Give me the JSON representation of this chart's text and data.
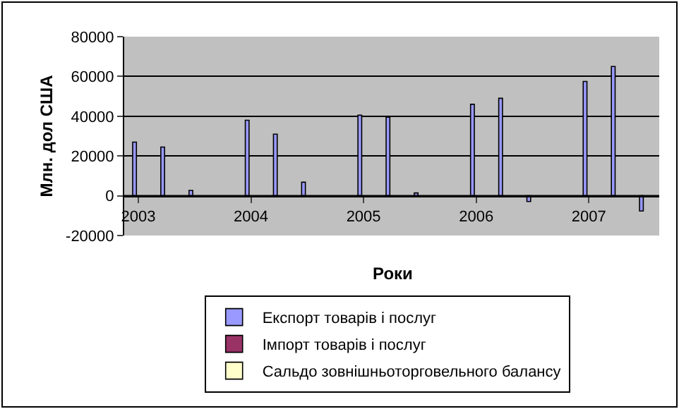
{
  "chart_data": {
    "type": "bar",
    "xlabel": "Роки",
    "ylabel": "Млн. дол США",
    "categories": [
      "2003",
      null,
      null,
      null,
      "2004",
      null,
      null,
      null,
      "2005",
      null,
      null,
      null,
      "2006",
      null,
      null,
      null,
      "2007",
      null,
      null
    ],
    "series": [
      {
        "name": "Експорт товарів і послуг",
        "color": "#9999ff",
        "values": [
          27000,
          24500,
          2700,
          null,
          38000,
          31000,
          6800,
          null,
          40500,
          39500,
          1400,
          null,
          46000,
          49000,
          -2900,
          null,
          57500,
          65000,
          -7700
        ]
      },
      {
        "name": "Імпорт товарів і послуг",
        "color": "#993366",
        "values": [
          null,
          null,
          null,
          null,
          null,
          null,
          null,
          null,
          null,
          null,
          null,
          null,
          null,
          null,
          null,
          null,
          null,
          null,
          null
        ]
      },
      {
        "name": "Сальдо зовнішньоторговельного балансу",
        "color": "#ffffcc",
        "values": [
          null,
          null,
          null,
          null,
          null,
          null,
          null,
          null,
          null,
          null,
          null,
          null,
          null,
          null,
          null,
          null,
          null,
          null,
          null
        ]
      }
    ],
    "ylim": [
      -20000,
      80000
    ],
    "yticks": [
      -20000,
      0,
      20000,
      40000,
      60000,
      80000
    ],
    "grid": "y",
    "legend": "bottom"
  }
}
